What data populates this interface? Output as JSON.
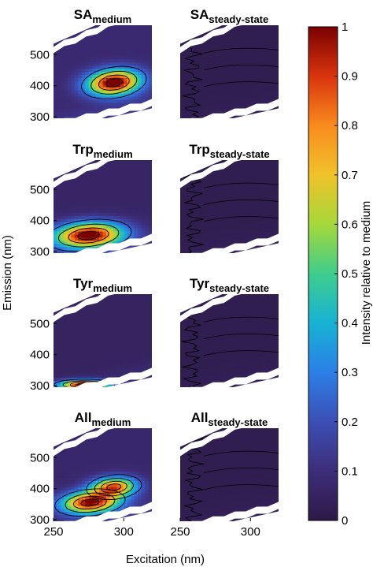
{
  "chart_data": {
    "type": "heatmap",
    "xlabel": "Excitation (nm)",
    "ylabel": "Emission (nm)",
    "colorbar_label": "Intensity relative to medium",
    "colormap": "jet-like (dark purple to dark red)",
    "colorbar": {
      "range": [
        0,
        1
      ],
      "ticks": [
        "0",
        "0.1",
        "0.2",
        "0.3",
        "0.4",
        "0.5",
        "0.6",
        "0.7",
        "0.8",
        "0.9",
        "1"
      ]
    },
    "xlim": [
      250,
      320
    ],
    "ylim": [
      295,
      595
    ],
    "xticks": [
      "250",
      "300",
      "250",
      "300"
    ],
    "yticks": [
      "300",
      "400",
      "500"
    ],
    "panels": [
      {
        "row": 0,
        "col": 0,
        "name": "SA",
        "subscript": "medium",
        "peaks": [
          {
            "ex": 293,
            "em": 410,
            "sx": 13,
            "sy": 28,
            "amp": 1.0,
            "rot": 0.15
          }
        ],
        "background": 0.08
      },
      {
        "row": 0,
        "col": 1,
        "name": "SA",
        "subscript": "steady-state",
        "peaks": [],
        "background": 0.02
      },
      {
        "row": 1,
        "col": 0,
        "name": "Trp",
        "subscript": "medium",
        "peaks": [
          {
            "ex": 275,
            "em": 352,
            "sx": 17,
            "sy": 28,
            "amp": 1.0,
            "rot": 0.1
          }
        ],
        "background": 0.06
      },
      {
        "row": 1,
        "col": 1,
        "name": "Trp",
        "subscript": "steady-state",
        "peaks": [],
        "background": 0.02
      },
      {
        "row": 2,
        "col": 0,
        "name": "Tyr",
        "subscript": "medium",
        "peaks": [
          {
            "ex": 272,
            "em": 303,
            "sx": 12,
            "sy": 10,
            "amp": 1.0,
            "rot": 0
          }
        ],
        "background": 0.05
      },
      {
        "row": 2,
        "col": 1,
        "name": "Tyr",
        "subscript": "steady-state",
        "peaks": [],
        "background": 0.02
      },
      {
        "row": 3,
        "col": 0,
        "name": "All",
        "subscript": "medium",
        "peaks": [
          {
            "ex": 276,
            "em": 355,
            "sx": 14,
            "sy": 24,
            "amp": 0.92,
            "rot": 0.1
          },
          {
            "ex": 293,
            "em": 405,
            "sx": 11,
            "sy": 22,
            "amp": 0.78,
            "rot": 0.1
          }
        ],
        "background": 0.07
      },
      {
        "row": 3,
        "col": 1,
        "name": "All",
        "subscript": "steady-state",
        "peaks": [],
        "background": 0.02
      }
    ]
  }
}
